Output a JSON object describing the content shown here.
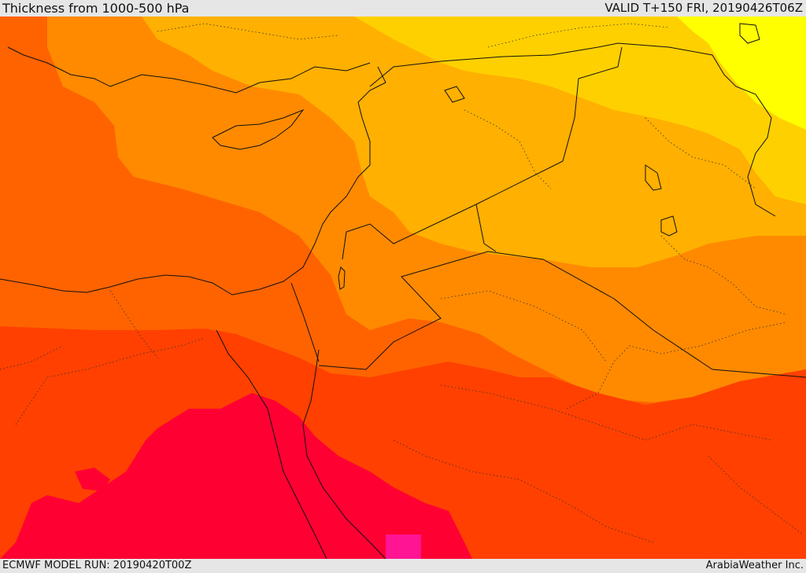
{
  "header": {
    "title": "Thickness from 1000-500 hPa",
    "valid": "VALID T+150 FRI, 20190426T06Z"
  },
  "footer": {
    "model_run": "ECMWF MODEL RUN: 20190420T00Z",
    "credit": "ArabiaWeather Inc."
  },
  "map": {
    "field": "1000-500 hPa thickness",
    "palette": [
      "#ffff00",
      "#ffd400",
      "#ffb000",
      "#ff8a00",
      "#ff6300",
      "#ff4000",
      "#ff0033",
      "#ff0080"
    ],
    "boundaries": [
      "coastline",
      "country-borders",
      "province-borders"
    ]
  }
}
